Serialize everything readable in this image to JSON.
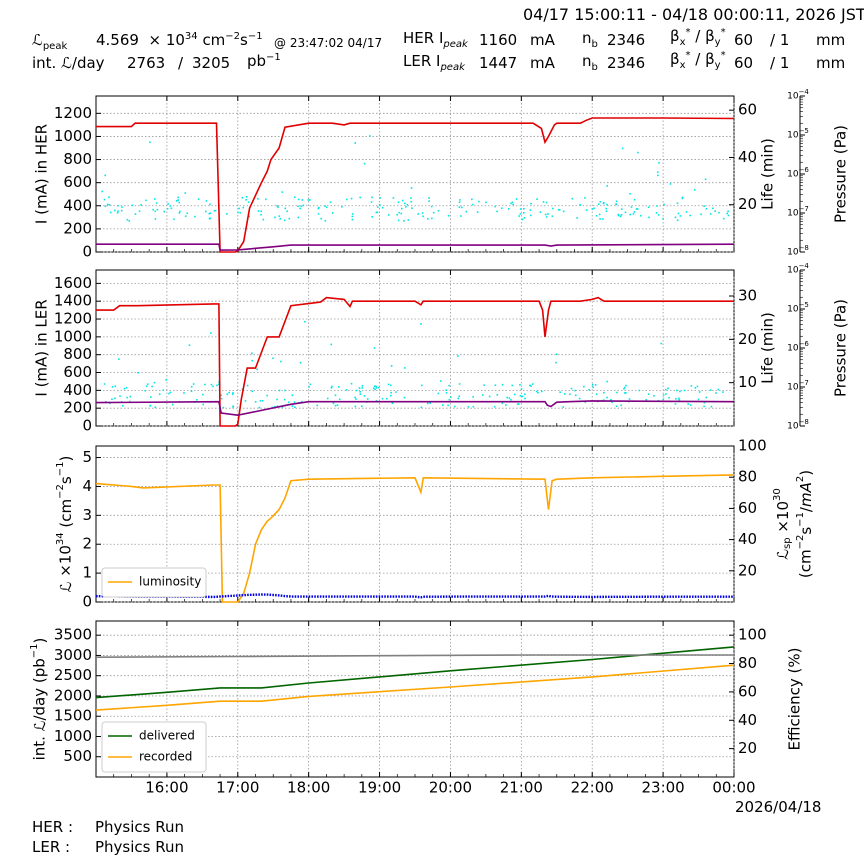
{
  "header": {
    "time_range": "04/17 15:00:11 - 04/18 00:00:11, 2026 JST",
    "lpeak_label": "peak",
    "lpeak_value": "4.569",
    "lpeak_exp": "34",
    "lpeak_unit_cm": "cm",
    "lpeak_unit_s": "s",
    "lpeak_at": "@ 23:47:02 04/17",
    "intl_label": "int. ",
    "intl_per_day": "/day",
    "intl_value": "2763",
    "intl_sep": "/",
    "intl_total": "3205",
    "intl_unit": "pb",
    "her_label": "HER I",
    "ler_label": "LER I",
    "peak_sub": "peak",
    "her_current": "1160",
    "ler_current": "1447",
    "current_unit": "mA",
    "nb_label": "n",
    "nb_sub": "b",
    "her_nb": "2346",
    "ler_nb": "2346",
    "beta_label": "β",
    "her_beta": "60",
    "her_beta_ratio": "/ 1",
    "ler_beta": "60",
    "ler_beta_ratio": "/ 1",
    "beta_unit": "mm"
  },
  "footer": {
    "her_label": "HER :",
    "her_status": "Physics Run",
    "ler_label": "LER :",
    "ler_status": "Physics Run",
    "date": "2026/04/18"
  },
  "colors": {
    "current": "#e00000",
    "life": "#800080",
    "pressure": "#00e5e5",
    "lum_specific": "#0000e0",
    "luminosity": "#ffa500",
    "delivered": "#006400",
    "recorded": "#ffa500",
    "efficiency": "#808080",
    "grid": "#999999"
  },
  "chart_data": [
    {
      "type": "line",
      "panel": "HER",
      "x_ticks": [
        "16:00",
        "17:00",
        "18:00",
        "19:00",
        "20:00",
        "21:00",
        "22:00",
        "23:00",
        "00:00"
      ],
      "ylabel": "I (mA) in HER",
      "ylim": [
        0,
        1350
      ],
      "yticks": [
        0,
        200,
        400,
        600,
        800,
        1000,
        1200
      ],
      "y2label": "Life (min)",
      "y2lim": [
        0,
        66
      ],
      "y2ticks": [
        20,
        40,
        60
      ],
      "y3label": "Pressure (Pa)",
      "y3_scale": "log",
      "y3ticks": [
        "10-8",
        "10-7",
        "10-6",
        "10-5",
        "10-4"
      ],
      "series": [
        {
          "key": "current",
          "x": [
            "15:00",
            "15:30",
            "15:33",
            "16:40",
            "16:42",
            "16:45",
            "16:58",
            "17:00",
            "17:05",
            "17:10",
            "17:20",
            "17:25",
            "17:28",
            "17:35",
            "17:40",
            "18:00",
            "18:20",
            "18:30",
            "18:35",
            "21:10",
            "21:17",
            "21:20",
            "21:23",
            "21:28",
            "21:30",
            "21:50",
            "21:55",
            "22:00",
            "23:00",
            "00:00"
          ],
          "y": [
            1085,
            1085,
            1115,
            1115,
            1115,
            0,
            0,
            10,
            90,
            380,
            600,
            700,
            800,
            900,
            1080,
            1115,
            1115,
            1100,
            1115,
            1115,
            1070,
            950,
            1000,
            1100,
            1115,
            1115,
            1140,
            1160,
            1160,
            1155
          ]
        },
        {
          "key": "life",
          "x": [
            "15:00",
            "16:44",
            "16:45",
            "17:00",
            "17:30",
            "17:45",
            "18:00",
            "21:20",
            "21:25",
            "21:30",
            "00:00"
          ],
          "y": [
            3.3,
            3.3,
            0.8,
            0.9,
            2.2,
            2.9,
            2.9,
            2.9,
            2.5,
            2.9,
            3.3
          ]
        }
      ]
    },
    {
      "type": "line",
      "panel": "LER",
      "ylabel": "I (mA) in LER",
      "ylim": [
        0,
        1750
      ],
      "yticks": [
        0,
        200,
        400,
        600,
        800,
        1000,
        1200,
        1400,
        1600
      ],
      "y2label": "Life (min)",
      "y2lim": [
        0,
        36
      ],
      "y2ticks": [
        10,
        20,
        30
      ],
      "y3label": "Pressure (Pa)",
      "y3_scale": "log",
      "y3ticks": [
        "10-8",
        "10-7",
        "10-6",
        "10-5",
        "10-4"
      ],
      "series": [
        {
          "key": "current",
          "x": [
            "15:00",
            "15:15",
            "15:20",
            "15:35",
            "16:40",
            "16:44",
            "16:45",
            "16:58",
            "17:00",
            "17:03",
            "17:08",
            "17:15",
            "17:25",
            "17:30",
            "17:35",
            "17:45",
            "18:10",
            "18:15",
            "18:30",
            "18:35",
            "18:37",
            "19:00",
            "19:30",
            "19:35",
            "19:37",
            "21:15",
            "21:18",
            "21:20",
            "21:23",
            "21:25",
            "21:28",
            "21:50",
            "22:00",
            "22:05",
            "22:10",
            "00:00"
          ],
          "y": [
            1300,
            1300,
            1350,
            1350,
            1370,
            1370,
            0,
            0,
            20,
            300,
            650,
            650,
            1000,
            1000,
            1000,
            1350,
            1390,
            1440,
            1420,
            1340,
            1400,
            1400,
            1400,
            1360,
            1400,
            1400,
            1300,
            1000,
            1300,
            1400,
            1400,
            1400,
            1420,
            1440,
            1400,
            1400
          ]
        },
        {
          "key": "life",
          "x": [
            "15:00",
            "16:44",
            "16:46",
            "17:00",
            "17:20",
            "17:45",
            "18:00",
            "21:20",
            "21:22",
            "21:25",
            "21:30",
            "21:40",
            "22:00",
            "00:00"
          ],
          "y": [
            5.4,
            5.6,
            3.0,
            2.5,
            3.6,
            5.0,
            5.6,
            5.6,
            4.8,
            4.5,
            5.5,
            5.6,
            5.8,
            5.6
          ]
        }
      ]
    },
    {
      "type": "line",
      "panel": "Luminosity",
      "ylabel": "L ×1034 (cm-2s-1)",
      "ylim": [
        0,
        5.4
      ],
      "yticks": [
        0,
        1,
        2,
        3,
        4,
        5
      ],
      "y2label": "Lsp ×1030 (cm-2s-1/mA2)",
      "y2lim": [
        0,
        100
      ],
      "y2ticks": [
        20,
        40,
        60,
        80,
        100
      ],
      "legend": "lower-left",
      "series": [
        {
          "name": "luminosity",
          "key": "luminosity",
          "x": [
            "15:00",
            "15:30",
            "15:40",
            "16:40",
            "16:45",
            "16:47",
            "17:00",
            "17:05",
            "17:10",
            "17:15",
            "17:20",
            "17:25",
            "17:28",
            "17:35",
            "17:40",
            "17:45",
            "18:00",
            "19:30",
            "19:35",
            "19:37",
            "21:20",
            "21:23",
            "21:26",
            "21:30",
            "22:00",
            "23:00",
            "00:00"
          ],
          "y": [
            4.1,
            4.0,
            3.95,
            4.05,
            4.05,
            0,
            0,
            0.3,
            1.0,
            2.0,
            2.5,
            2.8,
            2.9,
            3.2,
            3.6,
            4.2,
            4.25,
            4.3,
            3.8,
            4.3,
            4.25,
            3.2,
            4.2,
            4.25,
            4.3,
            4.35,
            4.4
          ]
        },
        {
          "key": "lum_specific",
          "x": [
            "15:00",
            "15:15",
            "15:30",
            "16:00",
            "16:40",
            "17:10",
            "17:15",
            "17:20",
            "17:25",
            "17:30",
            "17:35",
            "17:40",
            "17:45",
            "17:50",
            "18:00",
            "19:30",
            "19:35",
            "19:38",
            "20:00",
            "21:20",
            "21:23",
            "21:25",
            "21:30",
            "22:00",
            "23:00",
            "00:00"
          ],
          "y": [
            3.7,
            3.65,
            3.45,
            3.4,
            3.3,
            4.6,
            4.7,
            4.8,
            4.75,
            4.5,
            4.2,
            3.8,
            3.5,
            3.45,
            3.45,
            3.45,
            3.0,
            3.4,
            3.45,
            3.45,
            4.0,
            3.5,
            3.4,
            3.3,
            3.4,
            3.4
          ]
        }
      ]
    },
    {
      "type": "line",
      "panel": "Integrated",
      "ylabel": "int. L/day (pb-1)",
      "ylim": [
        0,
        3850
      ],
      "yticks": [
        500,
        1000,
        1500,
        2000,
        2500,
        3000,
        3500
      ],
      "y2label": "Efficiency (%)",
      "y2lim": [
        0,
        110
      ],
      "y2ticks": [
        20,
        40,
        60,
        80,
        100
      ],
      "legend": "lower-left",
      "series": [
        {
          "name": "delivered",
          "key": "delivered",
          "x": [
            "15:00",
            "16:00",
            "16:45",
            "17:20",
            "18:00",
            "20:00",
            "22:00",
            "00:00"
          ],
          "y": [
            1960,
            2090,
            2200,
            2200,
            2320,
            2620,
            2900,
            3210
          ]
        },
        {
          "name": "recorded",
          "key": "recorded",
          "x": [
            "15:00",
            "16:00",
            "16:45",
            "17:20",
            "18:00",
            "20:00",
            "22:00",
            "00:00"
          ],
          "y": [
            1650,
            1770,
            1870,
            1870,
            1990,
            2220,
            2470,
            2760
          ]
        },
        {
          "key": "efficiency",
          "x": [
            "15:00",
            "17:00",
            "19:00",
            "21:00",
            "00:00"
          ],
          "y": [
            84.5,
            85,
            85.5,
            86,
            86
          ]
        }
      ]
    }
  ]
}
